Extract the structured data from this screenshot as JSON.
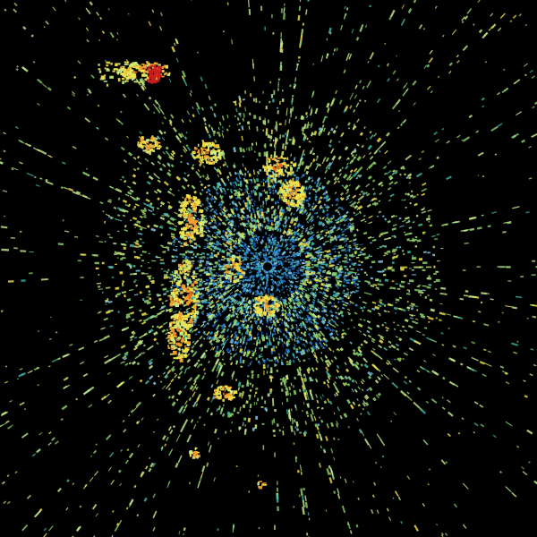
{
  "image": {
    "kind": "weather-radar-reflectivity",
    "background_color": "#000000",
    "radar_site_color": "#000000",
    "palette": {
      "light_blue": "#7ec8e3",
      "blue": "#2f8fd6",
      "deep_blue": "#1a5fb4",
      "teal": "#3fb8a8",
      "green": "#8ed36b",
      "light_green": "#c7ef8a",
      "yellow": "#f2e34a",
      "orange": "#f0a030",
      "dark_orange": "#e06a1e",
      "red": "#c81e1e"
    }
  }
}
